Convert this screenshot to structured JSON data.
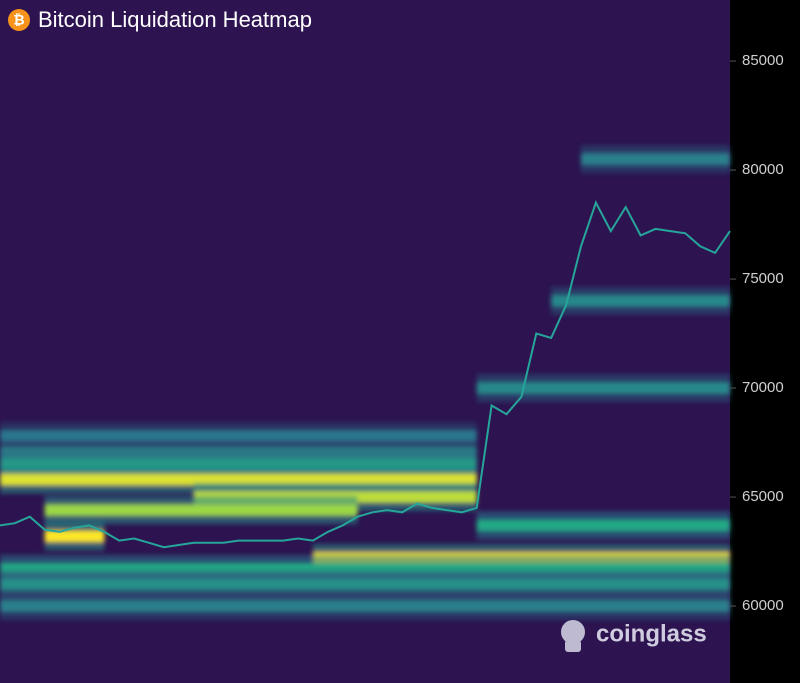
{
  "chart_data": {
    "type": "heatmap",
    "title": "Bitcoin Liquidation Heatmap",
    "watermark": "coinglass",
    "ylim": [
      56470,
      87800
    ],
    "yticks": [
      60000,
      65000,
      70000,
      75000,
      80000,
      85000
    ],
    "price": {
      "color": "#26a69a",
      "values": [
        63700,
        63800,
        64100,
        63500,
        63400,
        63600,
        63700,
        63400,
        63000,
        63100,
        62900,
        62700,
        62800,
        62900,
        62900,
        62900,
        63000,
        63000,
        63000,
        63000,
        63100,
        63000,
        63400,
        63700,
        64100,
        64300,
        64400,
        64300,
        64700,
        64500,
        64400,
        64300,
        64500,
        69200,
        68800,
        69600,
        72500,
        72300,
        73800,
        76500,
        78500,
        77200,
        78300,
        77000,
        77300,
        77200,
        77100,
        76500,
        76200,
        77200
      ]
    },
    "heat": [
      {
        "price": 67800,
        "intensity": 0.3,
        "start": 0,
        "end": 32
      },
      {
        "price": 67000,
        "intensity": 0.38,
        "start": 0,
        "end": 32
      },
      {
        "price": 66500,
        "intensity": 0.5,
        "start": 0,
        "end": 32
      },
      {
        "price": 65800,
        "intensity": 0.95,
        "start": 0,
        "end": 32
      },
      {
        "price": 65000,
        "intensity": 0.9,
        "start": 13,
        "end": 32
      },
      {
        "price": 64400,
        "intensity": 0.85,
        "start": 3,
        "end": 24
      },
      {
        "price": 63200,
        "intensity": 1,
        "start": 3,
        "end": 7
      },
      {
        "price": 63700,
        "intensity": 0.6,
        "start": 32,
        "end": 49
      },
      {
        "price": 62200,
        "intensity": 1,
        "start": 21,
        "end": 49
      },
      {
        "price": 61700,
        "intensity": 0.6,
        "start": 0,
        "end": 49
      },
      {
        "price": 61000,
        "intensity": 0.45,
        "start": 0,
        "end": 49
      },
      {
        "price": 60000,
        "intensity": 0.35,
        "start": 0,
        "end": 49
      },
      {
        "price": 70000,
        "intensity": 0.4,
        "start": 32,
        "end": 49
      },
      {
        "price": 74000,
        "intensity": 0.4,
        "start": 37,
        "end": 49
      },
      {
        "price": 80500,
        "intensity": 0.35,
        "start": 39,
        "end": 49
      }
    ]
  }
}
